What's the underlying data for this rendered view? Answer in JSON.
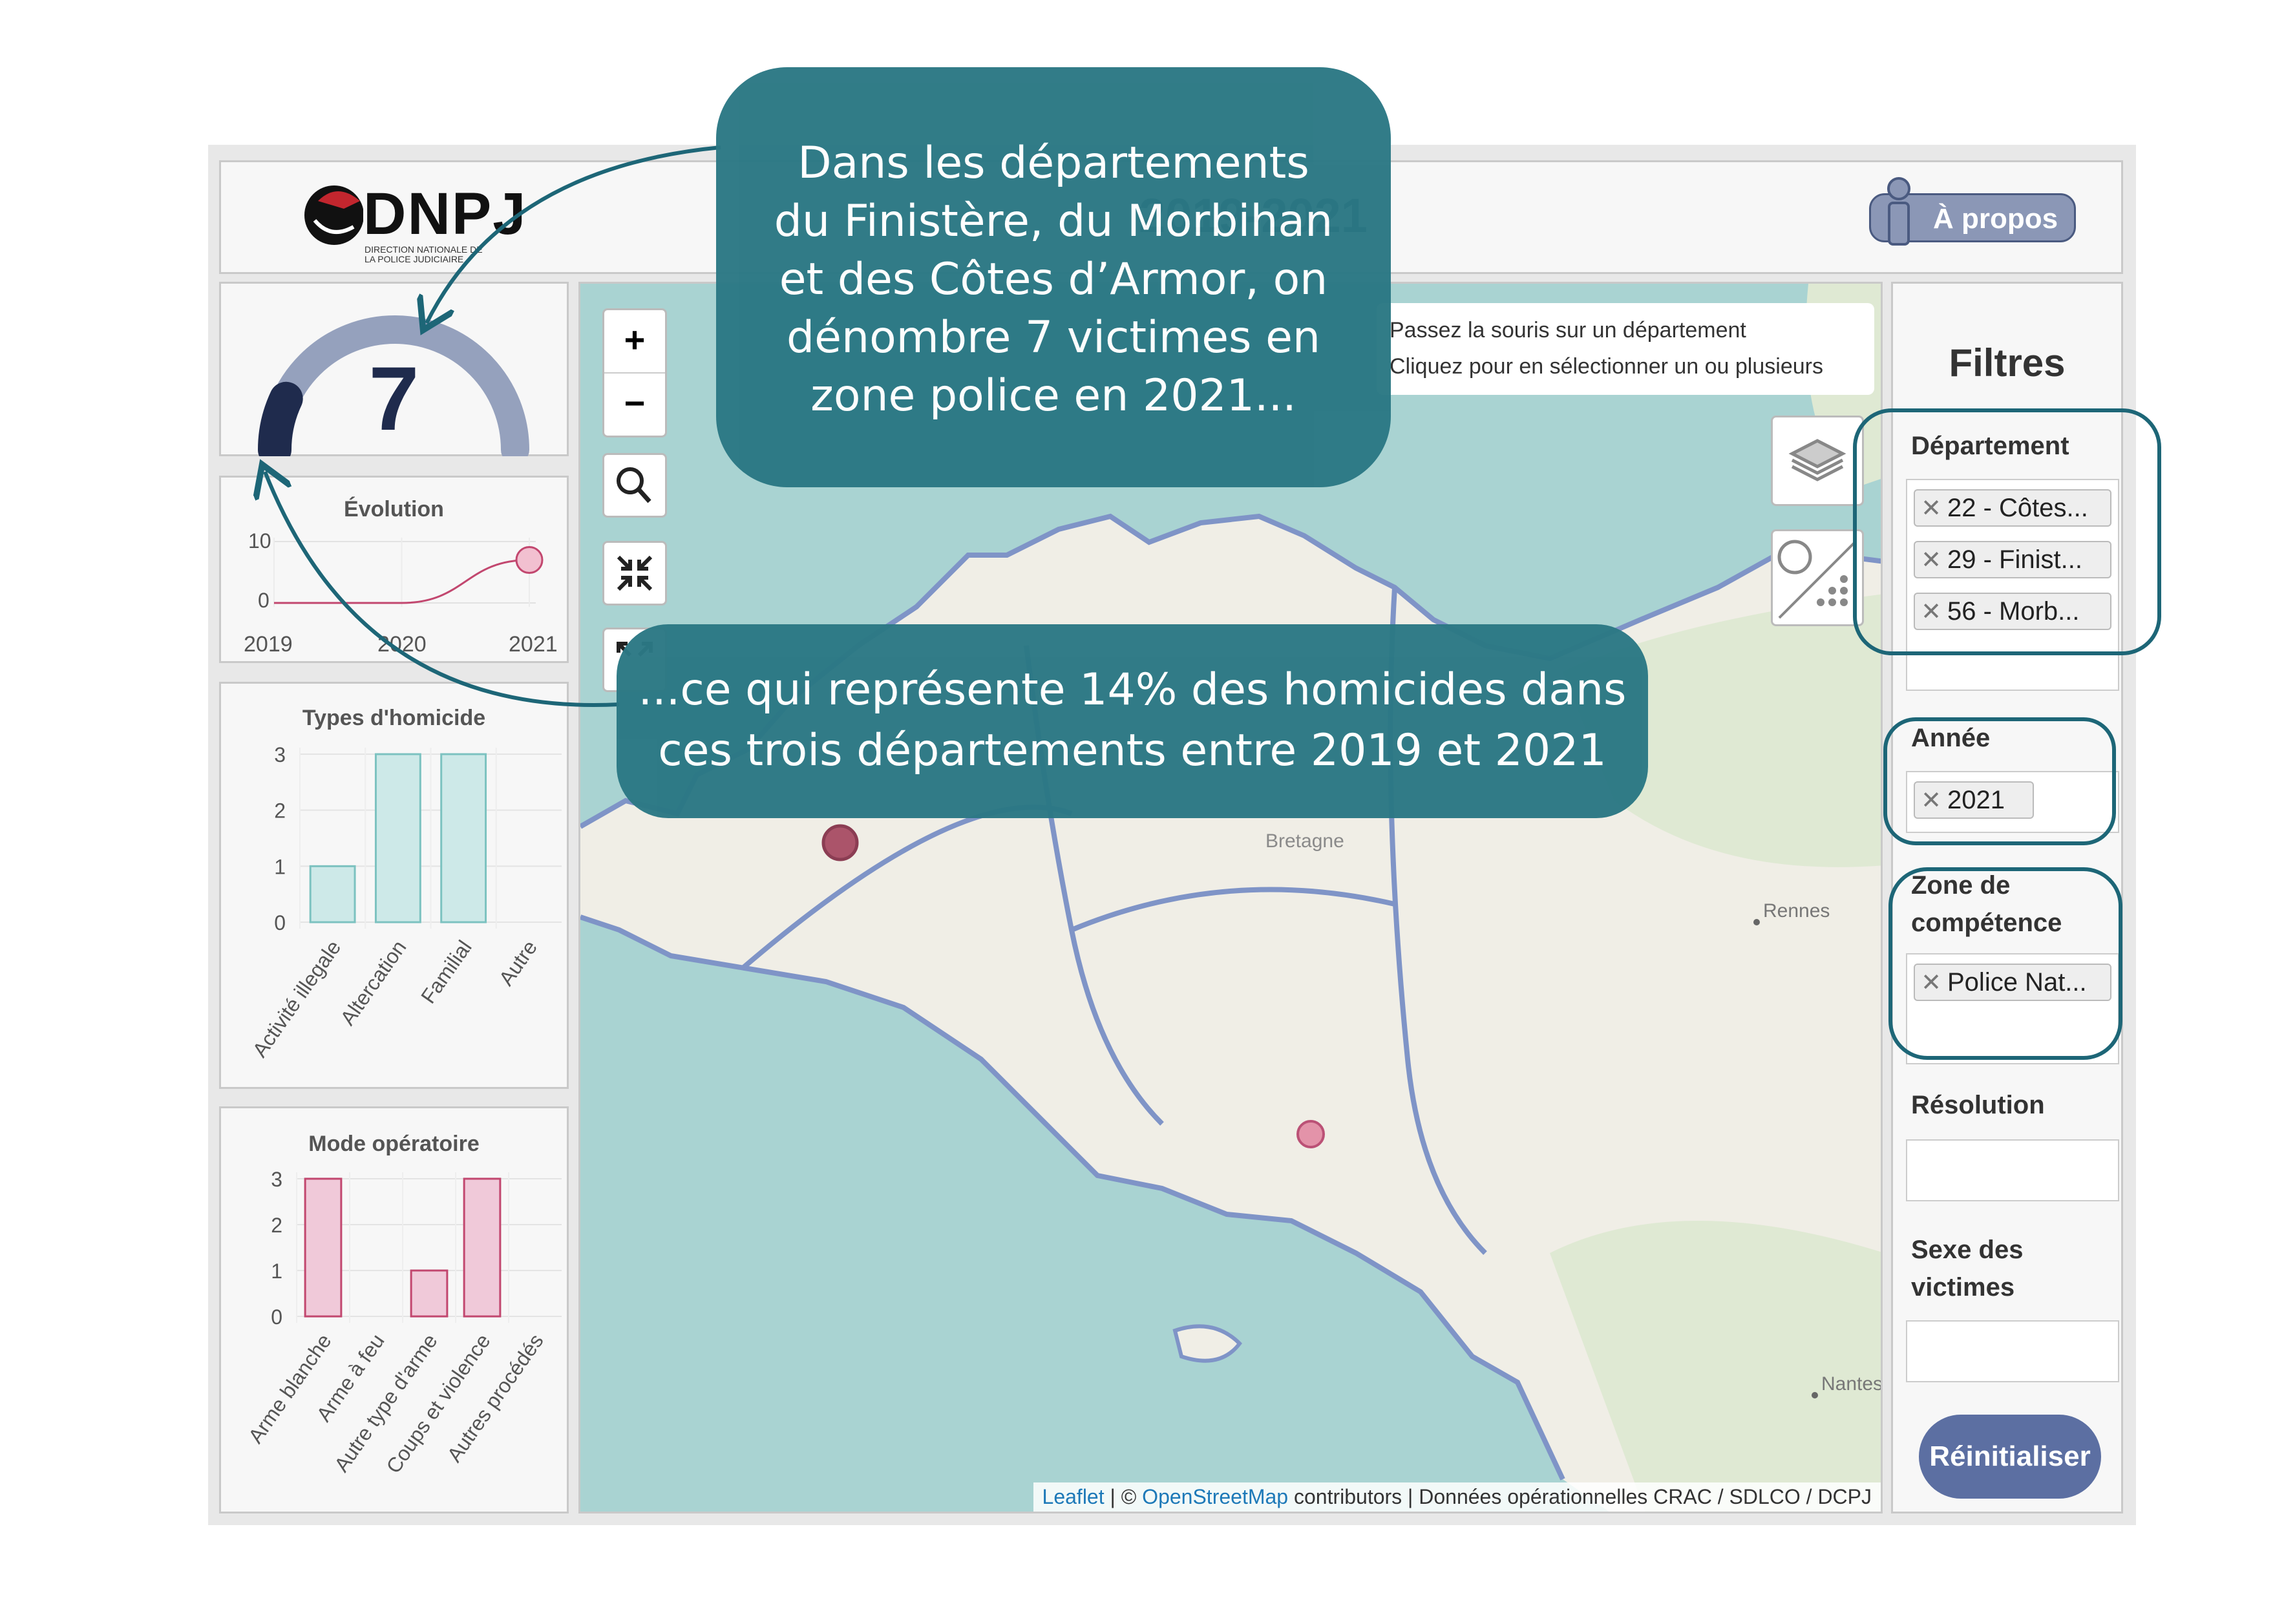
{
  "header": {
    "logo_text": "DNPJ",
    "logo_subtitle": "DIRECTION NATIONALE DE LA POLICE JUDICIAIRE",
    "title_visible": "2019-2021",
    "about_label": "À propos"
  },
  "indicator": {
    "value": "7",
    "gauge_fraction": 0.14
  },
  "evolution": {
    "title": "Évolution",
    "y_ticks": [
      "10",
      "0"
    ],
    "x_ticks": [
      "2019",
      "2020",
      "2021"
    ]
  },
  "types_homicide": {
    "title": "Types d'homicide",
    "y_ticks": [
      "3",
      "2",
      "1",
      "0"
    ]
  },
  "mode_operatoire": {
    "title": "Mode opératoire",
    "y_ticks": [
      "3",
      "2",
      "1",
      "0"
    ]
  },
  "chart_data": [
    {
      "type": "line",
      "title": "Évolution",
      "x": [
        "2019",
        "2020",
        "2021"
      ],
      "series": [
        {
          "values": [
            0,
            0,
            7
          ]
        }
      ],
      "ylim": [
        0,
        10
      ]
    },
    {
      "type": "bar",
      "title": "Types d'homicide",
      "categories": [
        "Activité illegale",
        "Altercation",
        "Familial",
        "Autre"
      ],
      "values": [
        1,
        3,
        3,
        0
      ],
      "ylim": [
        0,
        3
      ],
      "color": "#cde9e8"
    },
    {
      "type": "bar",
      "title": "Mode opératoire",
      "categories": [
        "Arme blanche",
        "Arme à feu",
        "Autre type d'arme",
        "Coups et violence",
        "Autres procédés"
      ],
      "values": [
        3,
        0,
        1,
        3,
        0
      ],
      "ylim": [
        0,
        3
      ],
      "color": "#f0c9d9"
    }
  ],
  "map": {
    "zoom_in": "+",
    "zoom_out": "−",
    "tooltip_line1": "Passez la souris sur un département",
    "tooltip_line2": "Cliquez pour en sélectionner un ou plusieurs",
    "place_bretagne": "Bretagne",
    "place_rennes": "Rennes",
    "place_nantes": "Nantes",
    "attribution_leaflet": "Leaflet",
    "attribution_sep": " | © ",
    "attribution_osm": "OpenStreetMap",
    "attribution_rest": " contributors | Données opérationnelles CRAC / SDLCO / DCPJ"
  },
  "filters": {
    "title": "Filtres",
    "departement_label": "Département",
    "departement_chips": [
      "22 - Côtes...",
      "29 - Finist...",
      "56 - Morb..."
    ],
    "annee_label": "Année",
    "annee_chips": [
      "2021"
    ],
    "zone_label_1": "Zone de",
    "zone_label_2": "compétence",
    "zone_chips": [
      "Police Nat..."
    ],
    "resolution_label": "Résolution",
    "sexe_label_1": "Sexe des",
    "sexe_label_2": "victimes",
    "reset_label": "Réinitialiser"
  },
  "callouts": {
    "c1_line1": "Dans les départements",
    "c1_line2": "du Finistère, du Morbihan",
    "c1_line3": "et des Côtes d’Armor, on",
    "c1_line4": "dénombre 7 victimes en",
    "c1_line5": "zone police en 2021...",
    "c2_line1": "...ce qui représente 14% des homicides dans",
    "c2_line2": "ces trois départements entre 2019 et 2021"
  },
  "colors": {
    "accent": "#2b7884",
    "navy": "#1f2b4d",
    "gauge": "#95a1bd",
    "ring": "#1d6677",
    "reset": "#5c6fa2",
    "teal_bar": "#cde9e8",
    "pink_bar": "#f0c9d9"
  }
}
